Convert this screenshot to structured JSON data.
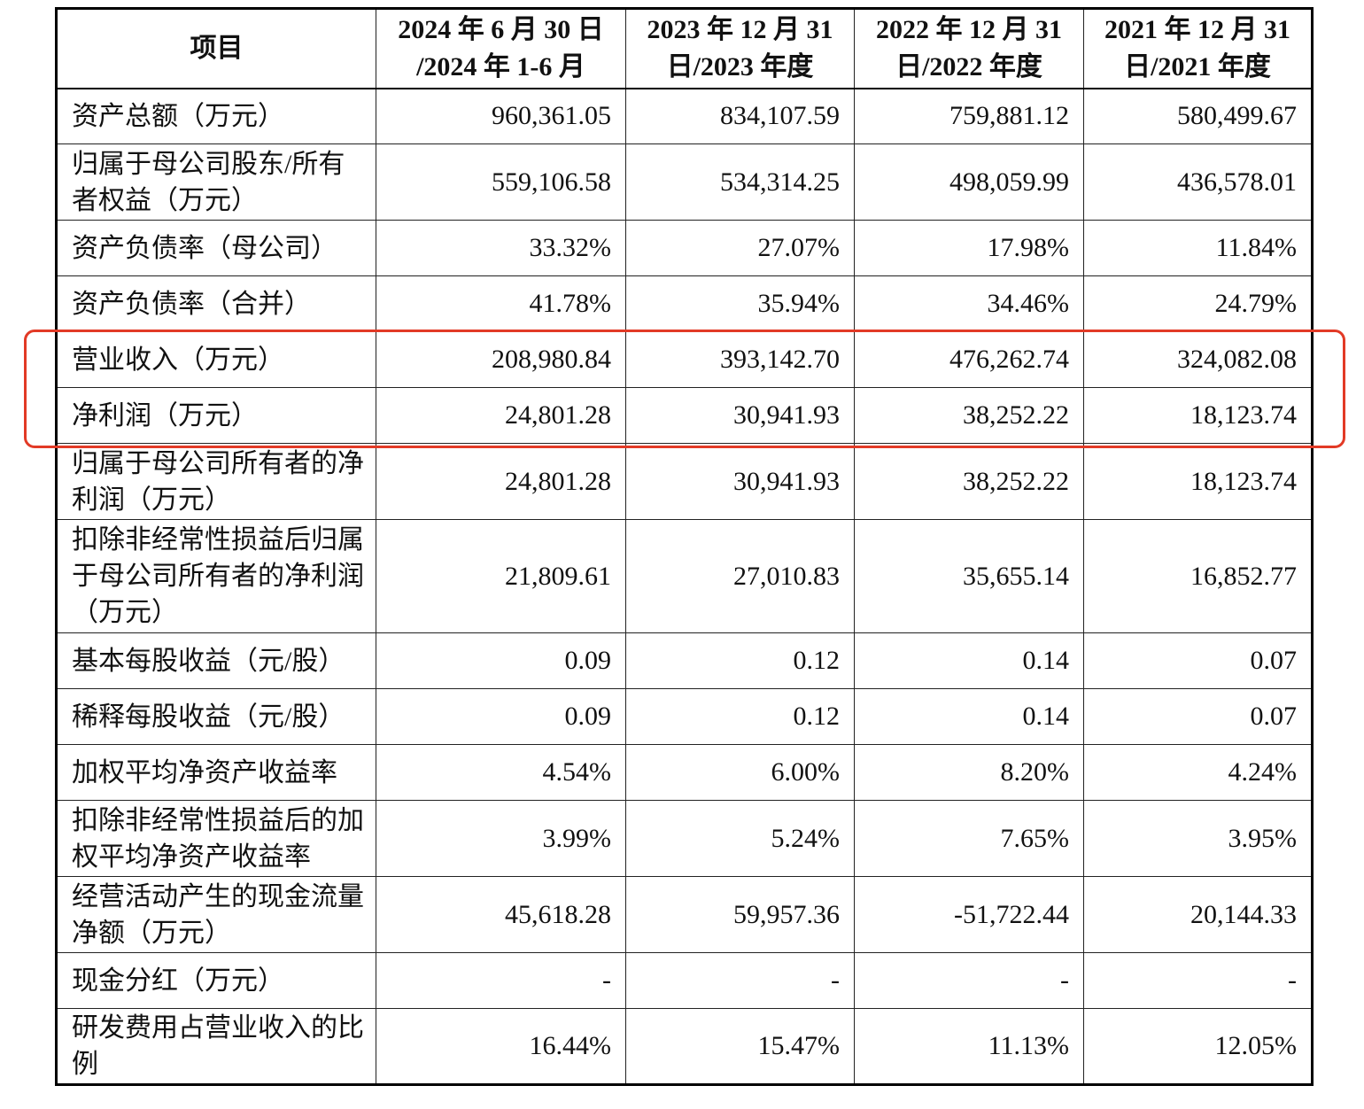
{
  "header": {
    "item": "项目",
    "periods": [
      [
        "2024 年 6 月 30 日",
        "/2024 年 1-6 月"
      ],
      [
        "2023 年 12 月 31",
        "日/2023 年度"
      ],
      [
        "2022 年 12 月 31",
        "日/2022 年度"
      ],
      [
        "2021 年 12 月 31",
        "日/2021 年度"
      ]
    ]
  },
  "rows": [
    {
      "label": "资产总额（万元）",
      "values": [
        "960,361.05",
        "834,107.59",
        "759,881.12",
        "580,499.67"
      ]
    },
    {
      "label": "归属于母公司股东/所有者权益（万元）",
      "values": [
        "559,106.58",
        "534,314.25",
        "498,059.99",
        "436,578.01"
      ]
    },
    {
      "label": "资产负债率（母公司）",
      "values": [
        "33.32%",
        "27.07%",
        "17.98%",
        "11.84%"
      ]
    },
    {
      "label": "资产负债率（合并）",
      "values": [
        "41.78%",
        "35.94%",
        "34.46%",
        "24.79%"
      ]
    },
    {
      "label": "营业收入（万元）",
      "values": [
        "208,980.84",
        "393,142.70",
        "476,262.74",
        "324,082.08"
      ]
    },
    {
      "label": "净利润（万元）",
      "values": [
        "24,801.28",
        "30,941.93",
        "38,252.22",
        "18,123.74"
      ]
    },
    {
      "label": "归属于母公司所有者的净利润（万元）",
      "values": [
        "24,801.28",
        "30,941.93",
        "38,252.22",
        "18,123.74"
      ]
    },
    {
      "label": "扣除非经常性损益后归属于母公司所有者的净利润（万元）",
      "values": [
        "21,809.61",
        "27,010.83",
        "35,655.14",
        "16,852.77"
      ]
    },
    {
      "label": "基本每股收益（元/股）",
      "values": [
        "0.09",
        "0.12",
        "0.14",
        "0.07"
      ]
    },
    {
      "label": "稀释每股收益（元/股）",
      "values": [
        "0.09",
        "0.12",
        "0.14",
        "0.07"
      ]
    },
    {
      "label": "加权平均净资产收益率",
      "values": [
        "4.54%",
        "6.00%",
        "8.20%",
        "4.24%"
      ]
    },
    {
      "label": "扣除非经常性损益后的加权平均净资产收益率",
      "values": [
        "3.99%",
        "5.24%",
        "7.65%",
        "3.95%"
      ]
    },
    {
      "label": "经营活动产生的现金流量净额（万元）",
      "values": [
        "45,618.28",
        "59,957.36",
        "-51,722.44",
        "20,144.33"
      ]
    },
    {
      "label": "现金分红（万元）",
      "values": [
        "-",
        "-",
        "-",
        "-"
      ]
    },
    {
      "label": "研发费用占营业收入的比例",
      "values": [
        "16.44%",
        "15.47%",
        "11.13%",
        "12.05%"
      ]
    }
  ],
  "highlight": {
    "color": "#e23a26"
  }
}
